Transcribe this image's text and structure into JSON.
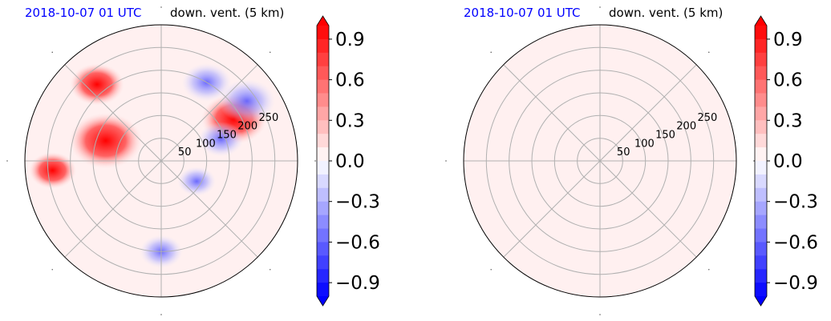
{
  "colors": {
    "date_title": "#0000ff",
    "text": "#000000",
    "grid": "#b0b0b0",
    "cmap_negative": "#0000ff",
    "cmap_positive": "#ff0000",
    "cmap_neutral": "#ffffff",
    "background_fill": "#fff0f0"
  },
  "chart_data": [
    {
      "type": "heatmap",
      "projection": "polar",
      "title_date": "2018-10-07 01 UTC",
      "title_variable": "down. vent. (5 km)",
      "radial_ticks": [
        "50",
        "100",
        "150",
        "200",
        "250"
      ],
      "radial_range": [
        0,
        300
      ],
      "radial_label_angle_deg": 22.5,
      "theta_gridlines_deg": [
        0,
        45,
        90,
        135,
        180,
        225,
        270,
        315
      ],
      "grid": true,
      "colorbar": {
        "ticks": [
          "0.9",
          "0.6",
          "0.3",
          "0.0",
          "−0.3",
          "−0.6",
          "−0.9"
        ],
        "range": [
          -1.0,
          1.0
        ],
        "levels": 20,
        "extend": "both",
        "colormap": "bwr"
      },
      "features": [
        {
          "kind": "positive",
          "theta_deg": 160,
          "r": 130,
          "value": 0.95
        },
        {
          "kind": "positive",
          "theta_deg": 130,
          "r": 220,
          "value": 0.55
        },
        {
          "kind": "positive",
          "theta_deg": 185,
          "r": 240,
          "value": 0.4
        },
        {
          "kind": "positive",
          "theta_deg": 30,
          "r": 185,
          "value": 0.8
        },
        {
          "kind": "negative",
          "theta_deg": 60,
          "r": 200,
          "value": -0.45
        },
        {
          "kind": "negative",
          "theta_deg": 35,
          "r": 230,
          "value": -0.6
        },
        {
          "kind": "negative",
          "theta_deg": 20,
          "r": 140,
          "value": -0.35
        },
        {
          "kind": "negative",
          "theta_deg": 270,
          "r": 200,
          "value": -0.3
        },
        {
          "kind": "negative",
          "theta_deg": 330,
          "r": 90,
          "value": -0.2
        }
      ]
    },
    {
      "type": "heatmap",
      "projection": "polar",
      "title_date": "2018-10-07 01 UTC",
      "title_variable": "down. vent. (5 km)",
      "radial_ticks": [
        "50",
        "100",
        "150",
        "200",
        "250"
      ],
      "radial_range": [
        0,
        300
      ],
      "radial_label_angle_deg": 22.5,
      "theta_gridlines_deg": [
        0,
        45,
        90,
        135,
        180,
        225,
        270,
        315
      ],
      "grid": true,
      "colorbar": {
        "ticks": [
          "0.9",
          "0.6",
          "0.3",
          "0.0",
          "−0.3",
          "−0.6",
          "−0.9"
        ],
        "range": [
          -1.0,
          1.0
        ],
        "levels": 20,
        "extend": "both",
        "colormap": "bwr"
      },
      "features": []
    }
  ]
}
